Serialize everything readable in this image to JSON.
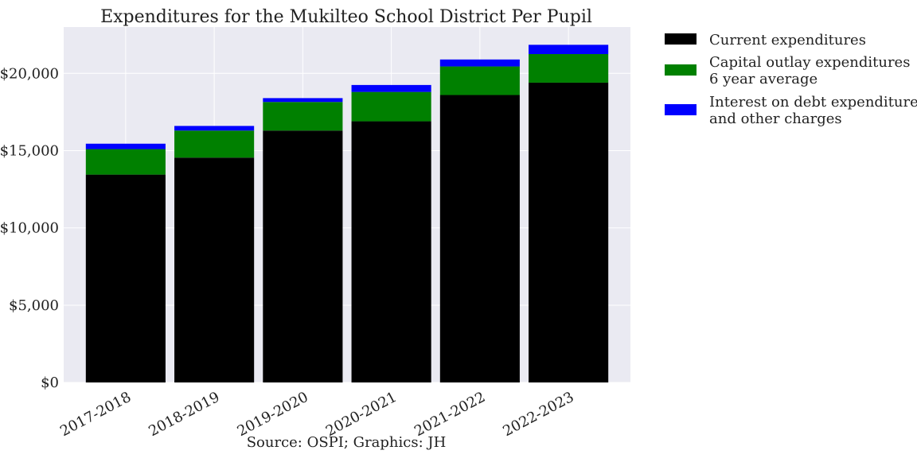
{
  "chart_data": {
    "type": "bar",
    "stacked": true,
    "title": "Expenditures for the Mukilteo School District Per Pupil",
    "xlabel": "",
    "ylabel": "",
    "categories": [
      "2017-2018",
      "2018-2019",
      "2019-2020",
      "2020-2021",
      "2021-2022",
      "2022-2023"
    ],
    "series": [
      {
        "name": "Current expenditures",
        "color": "#000000",
        "values": [
          13450,
          14550,
          16300,
          16900,
          18600,
          19400
        ]
      },
      {
        "name": "Capital outlay expenditures 6 year average",
        "legend_lines": [
          "Capital outlay expenditures",
          "6 year average"
        ],
        "color": "#008000",
        "values": [
          1650,
          1750,
          1850,
          1900,
          1850,
          1850
        ]
      },
      {
        "name": "Interest on debt expenditures and other charges",
        "legend_lines": [
          "Interest on debt expenditures",
          "and other charges"
        ],
        "color": "#0000ff",
        "values": [
          350,
          300,
          250,
          450,
          450,
          600
        ]
      }
    ],
    "ylim": [
      0,
      23000
    ],
    "yticks": [
      0,
      5000,
      10000,
      15000,
      20000
    ],
    "ytick_labels": [
      "$0",
      "$5,000",
      "$10,000",
      "$15,000",
      "$20,000"
    ],
    "grid": true,
    "legend_position": "outside-right",
    "caption": "Source: OSPI; Graphics: JH",
    "colors": {
      "plot_background": "#eaeaf2",
      "grid": "#ffffff"
    }
  }
}
